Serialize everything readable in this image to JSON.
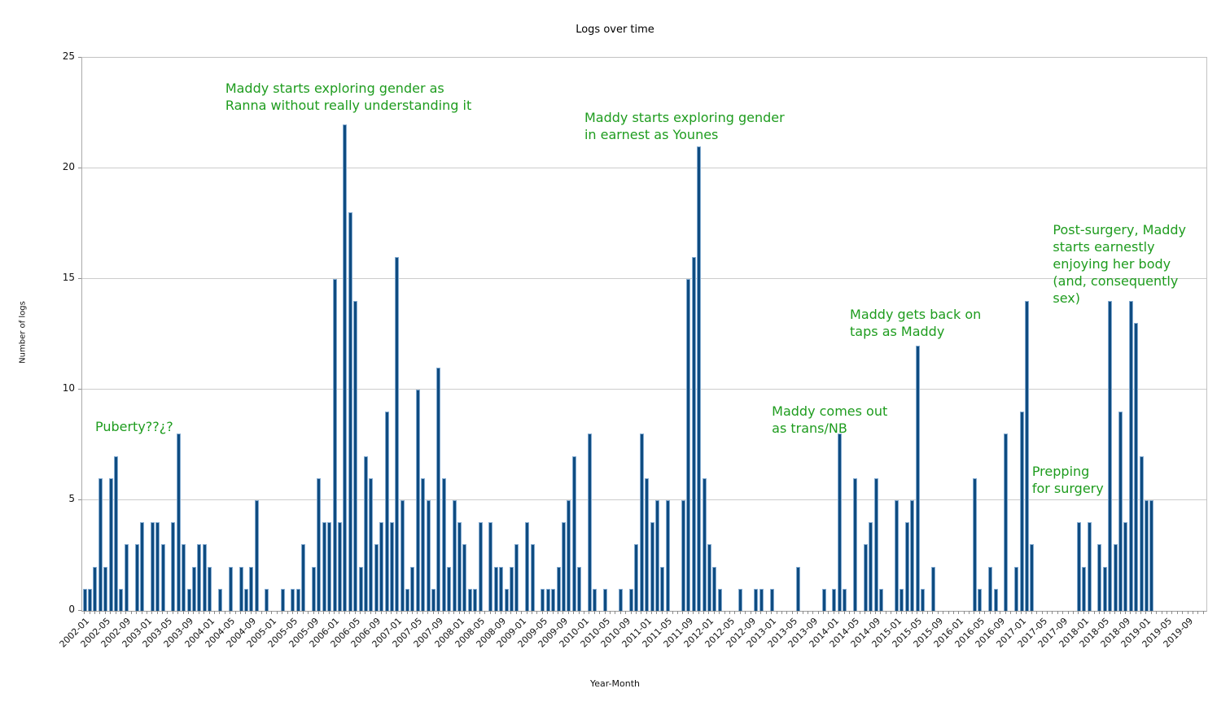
{
  "colors": {
    "bar_fill": "#0f4c81",
    "bar_edge": "#84abd1",
    "annotation_green": "#1e9c1e",
    "grid_gray": "#cccccc",
    "axis_gray": "#9a9a9a"
  },
  "chart_data": {
    "type": "bar",
    "title": "Logs over time",
    "xlabel": "Year-Month",
    "ylabel": "Number of logs",
    "ylim": [
      0,
      25
    ],
    "yticks": [
      0,
      5,
      10,
      15,
      20,
      25
    ],
    "grid": true,
    "legend": "none",
    "x_start": "2002-01",
    "x_end": "2019-12",
    "xtick_label_step_months": 4,
    "first_xtick_label": "2002-01",
    "last_xtick_label": "2019-09",
    "values_by_year": {
      "2002": [
        1,
        1,
        2,
        6,
        2,
        6,
        7,
        1,
        3,
        0,
        3,
        4
      ],
      "2003": [
        0,
        4,
        4,
        3,
        0,
        4,
        8,
        3,
        1,
        2,
        3,
        3
      ],
      "2004": [
        2,
        0,
        1,
        0,
        2,
        0,
        2,
        1,
        2,
        5,
        0,
        1
      ],
      "2005": [
        0,
        0,
        1,
        0,
        1,
        1,
        3,
        0,
        2,
        6,
        4,
        4
      ],
      "2006": [
        15,
        4,
        22,
        18,
        14,
        2,
        7,
        6,
        3,
        4,
        9,
        4
      ],
      "2007": [
        16,
        5,
        1,
        2,
        10,
        6,
        5,
        1,
        11,
        6,
        2,
        5
      ],
      "2008": [
        4,
        3,
        1,
        1,
        4,
        0,
        4,
        2,
        2,
        1,
        2,
        3
      ],
      "2009": [
        0,
        4,
        3,
        0,
        1,
        1,
        1,
        2,
        4,
        5,
        7,
        2
      ],
      "2010": [
        0,
        8,
        1,
        0,
        1,
        0,
        0,
        1,
        0,
        1,
        3,
        8
      ],
      "2011": [
        6,
        4,
        5,
        2,
        5,
        0,
        0,
        5,
        15,
        16,
        21,
        6
      ],
      "2012": [
        3,
        2,
        1,
        0,
        0,
        0,
        1,
        0,
        0,
        1,
        1,
        0
      ],
      "2013": [
        1,
        0,
        0,
        0,
        0,
        2,
        0,
        0,
        0,
        0,
        1,
        0
      ],
      "2014": [
        1,
        8,
        1,
        0,
        6,
        0,
        3,
        4,
        6,
        1,
        0,
        0
      ],
      "2015": [
        5,
        1,
        4,
        5,
        12,
        1,
        0,
        2,
        0,
        0,
        0,
        0
      ],
      "2016": [
        0,
        0,
        0,
        6,
        1,
        0,
        2,
        1,
        0,
        8,
        0,
        2
      ],
      "2017": [
        9,
        14,
        3,
        0,
        0,
        0,
        0,
        0,
        0,
        0,
        0,
        4
      ],
      "2018": [
        2,
        4,
        0,
        3,
        2,
        14,
        3,
        9,
        4,
        14,
        13,
        7
      ],
      "2019": [
        5,
        5,
        0,
        0,
        0,
        0,
        0,
        0,
        0,
        0,
        0,
        0
      ]
    },
    "annotations": [
      {
        "text": "Puberty??¿?",
        "x_month": "2002-03",
        "y_value": 8.7
      },
      {
        "text": "Maddy starts exploring gender as\nRanna without really understanding it",
        "x_month": "2004-04",
        "y_value": 24.0
      },
      {
        "text": "Maddy starts exploring gender\nin earnest as Younes",
        "x_month": "2010-01",
        "y_value": 22.7
      },
      {
        "text": "Maddy comes out\nas trans/NB",
        "x_month": "2013-01",
        "y_value": 9.4
      },
      {
        "text": "Maddy gets back on\ntaps as Maddy",
        "x_month": "2014-04",
        "y_value": 13.8
      },
      {
        "text": "Prepping\nfor surgery",
        "x_month": "2017-03",
        "y_value": 6.7
      },
      {
        "text": "Post-surgery, Maddy\nstarts earnestly\nenjoying her body\n(and, consequently\nsex)",
        "x_month": "2017-07",
        "y_value": 17.6
      }
    ]
  }
}
